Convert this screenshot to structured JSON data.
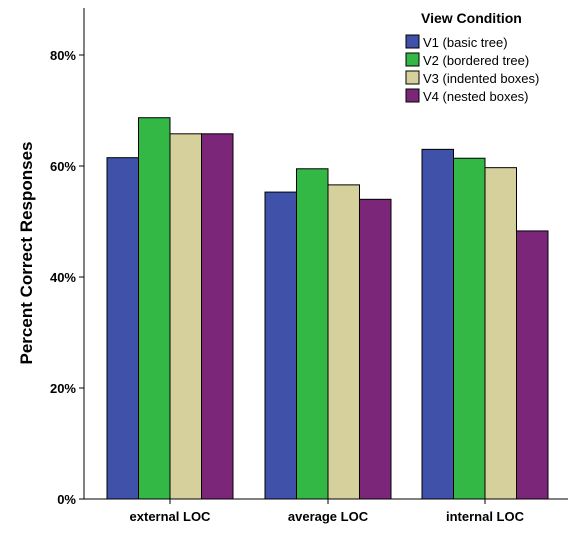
{
  "chart_data": {
    "type": "bar",
    "categories": [
      "external LOC",
      "average LOC",
      "internal LOC"
    ],
    "series": [
      {
        "name": "V1 (basic tree)",
        "color": "#3f51a8",
        "values": [
          61.5,
          55.3,
          63.0
        ]
      },
      {
        "name": "V2 (bordered tree)",
        "color": "#33b846",
        "values": [
          68.7,
          59.5,
          61.4
        ]
      },
      {
        "name": "V3 (indented boxes)",
        "color": "#d6d19c",
        "values": [
          65.8,
          56.6,
          59.7
        ]
      },
      {
        "name": "V4 (nested boxes)",
        "color": "#7b2678",
        "values": [
          65.8,
          54.0,
          48.3
        ]
      }
    ],
    "ylabel": "Percent Correct Responses",
    "xlabel": "",
    "ylim": [
      0,
      80
    ],
    "y_ticks": [
      "0%",
      "20%",
      "40%",
      "60%",
      "80%"
    ],
    "y_tick_values": [
      0,
      20,
      40,
      60,
      80
    ],
    "legend_title": "View Condition",
    "legend_position": "top-right",
    "grid": false
  }
}
